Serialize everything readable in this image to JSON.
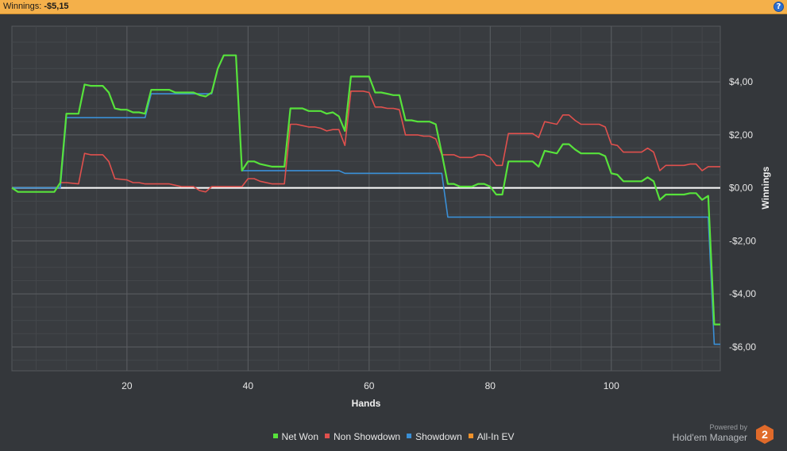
{
  "header": {
    "title_label": "Winnings:",
    "title_value": "-$5,15",
    "help_glyph": "?"
  },
  "brand": {
    "powered_by": "Powered by",
    "product": "Hold'em Manager",
    "logo_text": "2"
  },
  "colors": {
    "net_won": "#57e23b",
    "non_showdown": "#e0504d",
    "showdown": "#3a8fd6",
    "all_in_ev": "#f0922b",
    "zero_line": "#ffffff"
  },
  "chart_data": {
    "type": "line",
    "xlabel": "Hands",
    "ylabel": "Winnings",
    "xlim": [
      1,
      118
    ],
    "ylim": [
      -6.9,
      6.1
    ],
    "x_ticks": [
      20,
      40,
      60,
      80,
      100
    ],
    "y_ticks": [
      {
        "value": 4,
        "label": "$4,00"
      },
      {
        "value": 2,
        "label": "$2,00"
      },
      {
        "value": 0,
        "label": "$0,00"
      },
      {
        "value": -2,
        "label": "-$2,00"
      },
      {
        "value": -4,
        "label": "-$4,00"
      },
      {
        "value": -6,
        "label": "-$6,00"
      }
    ],
    "grid": true,
    "legend_position": "bottom-center",
    "series": [
      {
        "name": "Net Won",
        "color": "#57e23b",
        "points": [
          [
            1,
            0
          ],
          [
            2,
            -0.15
          ],
          [
            3,
            -0.15
          ],
          [
            5,
            -0.15
          ],
          [
            8,
            -0.15
          ],
          [
            9,
            0.2
          ],
          [
            10,
            2.8
          ],
          [
            12,
            2.8
          ],
          [
            13,
            3.9
          ],
          [
            14,
            3.85
          ],
          [
            16,
            3.85
          ],
          [
            17,
            3.6
          ],
          [
            18,
            3.0
          ],
          [
            19,
            2.95
          ],
          [
            20,
            2.95
          ],
          [
            21,
            2.85
          ],
          [
            22,
            2.85
          ],
          [
            23,
            2.8
          ],
          [
            24,
            3.7
          ],
          [
            25,
            3.7
          ],
          [
            27,
            3.7
          ],
          [
            28,
            3.6
          ],
          [
            29,
            3.6
          ],
          [
            30,
            3.6
          ],
          [
            31,
            3.6
          ],
          [
            32,
            3.5
          ],
          [
            33,
            3.45
          ],
          [
            34,
            3.6
          ],
          [
            35,
            4.5
          ],
          [
            36,
            5.0
          ],
          [
            38,
            5.0
          ],
          [
            39,
            0.65
          ],
          [
            40,
            1.0
          ],
          [
            41,
            1.0
          ],
          [
            42,
            0.9
          ],
          [
            44,
            0.8
          ],
          [
            46,
            0.8
          ],
          [
            47,
            3.0
          ],
          [
            48,
            3.0
          ],
          [
            49,
            3.0
          ],
          [
            50,
            2.9
          ],
          [
            51,
            2.9
          ],
          [
            52,
            2.9
          ],
          [
            53,
            2.8
          ],
          [
            54,
            2.85
          ],
          [
            55,
            2.7
          ],
          [
            56,
            2.15
          ],
          [
            57,
            4.2
          ],
          [
            58,
            4.2
          ],
          [
            59,
            4.2
          ],
          [
            60,
            4.2
          ],
          [
            61,
            3.6
          ],
          [
            62,
            3.6
          ],
          [
            63,
            3.55
          ],
          [
            64,
            3.5
          ],
          [
            65,
            3.5
          ],
          [
            66,
            2.55
          ],
          [
            67,
            2.55
          ],
          [
            68,
            2.5
          ],
          [
            69,
            2.5
          ],
          [
            70,
            2.5
          ],
          [
            71,
            2.4
          ],
          [
            72,
            1.3
          ],
          [
            73,
            0.15
          ],
          [
            74,
            0.15
          ],
          [
            75,
            0.05
          ],
          [
            76,
            0.05
          ],
          [
            77,
            0.05
          ],
          [
            78,
            0.15
          ],
          [
            79,
            0.15
          ],
          [
            80,
            0.05
          ],
          [
            81,
            -0.25
          ],
          [
            82,
            -0.25
          ],
          [
            83,
            1.0
          ],
          [
            84,
            1.0
          ],
          [
            86,
            1.0
          ],
          [
            87,
            1.0
          ],
          [
            88,
            0.8
          ],
          [
            89,
            1.4
          ],
          [
            90,
            1.35
          ],
          [
            91,
            1.3
          ],
          [
            92,
            1.65
          ],
          [
            93,
            1.65
          ],
          [
            94,
            1.45
          ],
          [
            95,
            1.3
          ],
          [
            96,
            1.3
          ],
          [
            98,
            1.3
          ],
          [
            99,
            1.2
          ],
          [
            100,
            0.55
          ],
          [
            101,
            0.5
          ],
          [
            102,
            0.25
          ],
          [
            104,
            0.25
          ],
          [
            105,
            0.25
          ],
          [
            106,
            0.4
          ],
          [
            107,
            0.25
          ],
          [
            108,
            -0.45
          ],
          [
            109,
            -0.25
          ],
          [
            111,
            -0.25
          ],
          [
            112,
            -0.25
          ],
          [
            113,
            -0.2
          ],
          [
            114,
            -0.2
          ],
          [
            115,
            -0.45
          ],
          [
            116,
            -0.3
          ],
          [
            117,
            -5.15
          ],
          [
            118,
            -5.15
          ]
        ]
      },
      {
        "name": "Non Showdown",
        "color": "#e0504d",
        "points": [
          [
            1,
            0
          ],
          [
            2,
            -0.15
          ],
          [
            3,
            -0.15
          ],
          [
            8,
            -0.15
          ],
          [
            9,
            0.2
          ],
          [
            10,
            0.2
          ],
          [
            12,
            0.15
          ],
          [
            13,
            1.3
          ],
          [
            14,
            1.25
          ],
          [
            16,
            1.25
          ],
          [
            17,
            1.0
          ],
          [
            18,
            0.35
          ],
          [
            20,
            0.3
          ],
          [
            21,
            0.2
          ],
          [
            22,
            0.2
          ],
          [
            23,
            0.15
          ],
          [
            27,
            0.15
          ],
          [
            28,
            0.1
          ],
          [
            29,
            0.05
          ],
          [
            31,
            0.05
          ],
          [
            32,
            -0.1
          ],
          [
            33,
            -0.15
          ],
          [
            34,
            0.05
          ],
          [
            38,
            0.05
          ],
          [
            39,
            0.05
          ],
          [
            40,
            0.35
          ],
          [
            41,
            0.35
          ],
          [
            42,
            0.25
          ],
          [
            44,
            0.15
          ],
          [
            46,
            0.15
          ],
          [
            47,
            2.4
          ],
          [
            48,
            2.4
          ],
          [
            49,
            2.35
          ],
          [
            50,
            2.3
          ],
          [
            51,
            2.3
          ],
          [
            52,
            2.25
          ],
          [
            53,
            2.15
          ],
          [
            54,
            2.2
          ],
          [
            55,
            2.2
          ],
          [
            56,
            1.6
          ],
          [
            57,
            3.65
          ],
          [
            59,
            3.65
          ],
          [
            60,
            3.6
          ],
          [
            61,
            3.05
          ],
          [
            62,
            3.05
          ],
          [
            63,
            3.0
          ],
          [
            64,
            3.0
          ],
          [
            65,
            2.95
          ],
          [
            66,
            2.0
          ],
          [
            68,
            2.0
          ],
          [
            69,
            1.95
          ],
          [
            70,
            1.95
          ],
          [
            71,
            1.85
          ],
          [
            72,
            1.25
          ],
          [
            74,
            1.25
          ],
          [
            75,
            1.15
          ],
          [
            76,
            1.15
          ],
          [
            77,
            1.15
          ],
          [
            78,
            1.25
          ],
          [
            79,
            1.25
          ],
          [
            80,
            1.15
          ],
          [
            81,
            0.85
          ],
          [
            82,
            0.85
          ],
          [
            83,
            2.05
          ],
          [
            86,
            2.05
          ],
          [
            87,
            2.05
          ],
          [
            88,
            1.9
          ],
          [
            89,
            2.5
          ],
          [
            90,
            2.45
          ],
          [
            91,
            2.4
          ],
          [
            92,
            2.75
          ],
          [
            93,
            2.75
          ],
          [
            94,
            2.55
          ],
          [
            95,
            2.4
          ],
          [
            96,
            2.4
          ],
          [
            98,
            2.4
          ],
          [
            99,
            2.3
          ],
          [
            100,
            1.65
          ],
          [
            101,
            1.6
          ],
          [
            102,
            1.35
          ],
          [
            105,
            1.35
          ],
          [
            106,
            1.5
          ],
          [
            107,
            1.35
          ],
          [
            108,
            0.65
          ],
          [
            109,
            0.85
          ],
          [
            112,
            0.85
          ],
          [
            113,
            0.9
          ],
          [
            114,
            0.9
          ],
          [
            115,
            0.65
          ],
          [
            116,
            0.8
          ],
          [
            118,
            0.8
          ]
        ]
      },
      {
        "name": "Showdown",
        "color": "#3a8fd6",
        "points": [
          [
            1,
            0
          ],
          [
            9,
            0
          ],
          [
            10,
            2.65
          ],
          [
            23,
            2.65
          ],
          [
            24,
            3.55
          ],
          [
            34,
            3.55
          ],
          [
            35,
            4.5
          ],
          [
            36,
            5.0
          ],
          [
            38,
            5.0
          ],
          [
            39,
            0.65
          ],
          [
            55,
            0.65
          ],
          [
            56,
            0.55
          ],
          [
            72,
            0.55
          ],
          [
            73,
            -1.1
          ],
          [
            116,
            -1.1
          ],
          [
            117,
            -5.9
          ],
          [
            118,
            -5.9
          ]
        ]
      },
      {
        "name": "All-In EV",
        "color": "#f0922b",
        "points": []
      }
    ]
  }
}
